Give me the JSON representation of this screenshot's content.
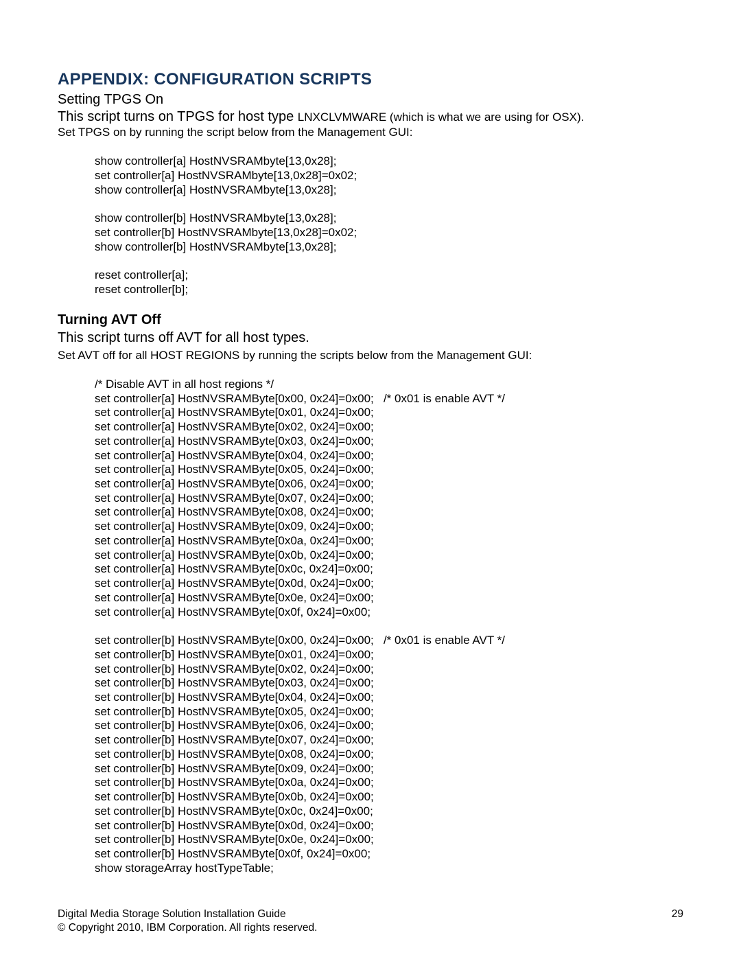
{
  "heading": "APPENDIX: CONFIGURATION SCRIPTS",
  "section1": {
    "title": "Setting TPGS On",
    "intro_pre": "This script turns on TPGS for host type ",
    "intro_code": "LNXCLVMWARE",
    "intro_post": " (which is what we are using for OSX).",
    "instruction": "Set TPGS on by running the script below from the Management GUI:",
    "script": [
      "show controller[a] HostNVSRAMbyte[13,0x28];",
      "set controller[a] HostNVSRAMbyte[13,0x28]=0x02;",
      "show controller[a] HostNVSRAMbyte[13,0x28];",
      "",
      "show controller[b] HostNVSRAMbyte[13,0x28];",
      "set controller[b] HostNVSRAMbyte[13,0x28]=0x02;",
      "show controller[b] HostNVSRAMbyte[13,0x28];",
      "",
      "reset controller[a];",
      "reset controller[b];"
    ]
  },
  "section2": {
    "title": "Turning AVT Off",
    "intro": "This script turns off AVT for all host types.",
    "instruction": "Set AVT off for all HOST REGIONS by running the scripts below from the Management GUI:",
    "script": [
      "/* Disable AVT in all host regions */",
      "set controller[a] HostNVSRAMByte[0x00, 0x24]=0x00;   /* 0x01 is enable AVT */",
      "set controller[a] HostNVSRAMByte[0x01, 0x24]=0x00;",
      "set controller[a] HostNVSRAMByte[0x02, 0x24]=0x00;",
      "set controller[a] HostNVSRAMByte[0x03, 0x24]=0x00;",
      "set controller[a] HostNVSRAMByte[0x04, 0x24]=0x00;",
      "set controller[a] HostNVSRAMByte[0x05, 0x24]=0x00;",
      "set controller[a] HostNVSRAMByte[0x06, 0x24]=0x00;",
      "set controller[a] HostNVSRAMByte[0x07, 0x24]=0x00;",
      "set controller[a] HostNVSRAMByte[0x08, 0x24]=0x00;",
      "set controller[a] HostNVSRAMByte[0x09, 0x24]=0x00;",
      "set controller[a] HostNVSRAMByte[0x0a, 0x24]=0x00;",
      "set controller[a] HostNVSRAMByte[0x0b, 0x24]=0x00;",
      "set controller[a] HostNVSRAMByte[0x0c, 0x24]=0x00;",
      "set controller[a] HostNVSRAMByte[0x0d, 0x24]=0x00;",
      "set controller[a] HostNVSRAMByte[0x0e, 0x24]=0x00;",
      "set controller[a] HostNVSRAMByte[0x0f, 0x24]=0x00;",
      "",
      "set controller[b] HostNVSRAMByte[0x00, 0x24]=0x00;   /* 0x01 is enable AVT */",
      "set controller[b] HostNVSRAMByte[0x01, 0x24]=0x00;",
      "set controller[b] HostNVSRAMByte[0x02, 0x24]=0x00;",
      "set controller[b] HostNVSRAMByte[0x03, 0x24]=0x00;",
      "set controller[b] HostNVSRAMByte[0x04, 0x24]=0x00;",
      "set controller[b] HostNVSRAMByte[0x05, 0x24]=0x00;",
      "set controller[b] HostNVSRAMByte[0x06, 0x24]=0x00;",
      "set controller[b] HostNVSRAMByte[0x07, 0x24]=0x00;",
      "set controller[b] HostNVSRAMByte[0x08, 0x24]=0x00;",
      "set controller[b] HostNVSRAMByte[0x09, 0x24]=0x00;",
      "set controller[b] HostNVSRAMByte[0x0a, 0x24]=0x00;",
      "set controller[b] HostNVSRAMByte[0x0b, 0x24]=0x00;",
      "set controller[b] HostNVSRAMByte[0x0c, 0x24]=0x00;",
      "set controller[b] HostNVSRAMByte[0x0d, 0x24]=0x00;",
      "set controller[b] HostNVSRAMByte[0x0e, 0x24]=0x00;",
      "set controller[b] HostNVSRAMByte[0x0f, 0x24]=0x00;",
      "show storageArray hostTypeTable;"
    ]
  },
  "footer": {
    "doc_title": "Digital Media Storage Solution Installation Guide",
    "page": "29",
    "copyright": "© Copyright 2010, IBM Corporation. All rights reserved."
  }
}
